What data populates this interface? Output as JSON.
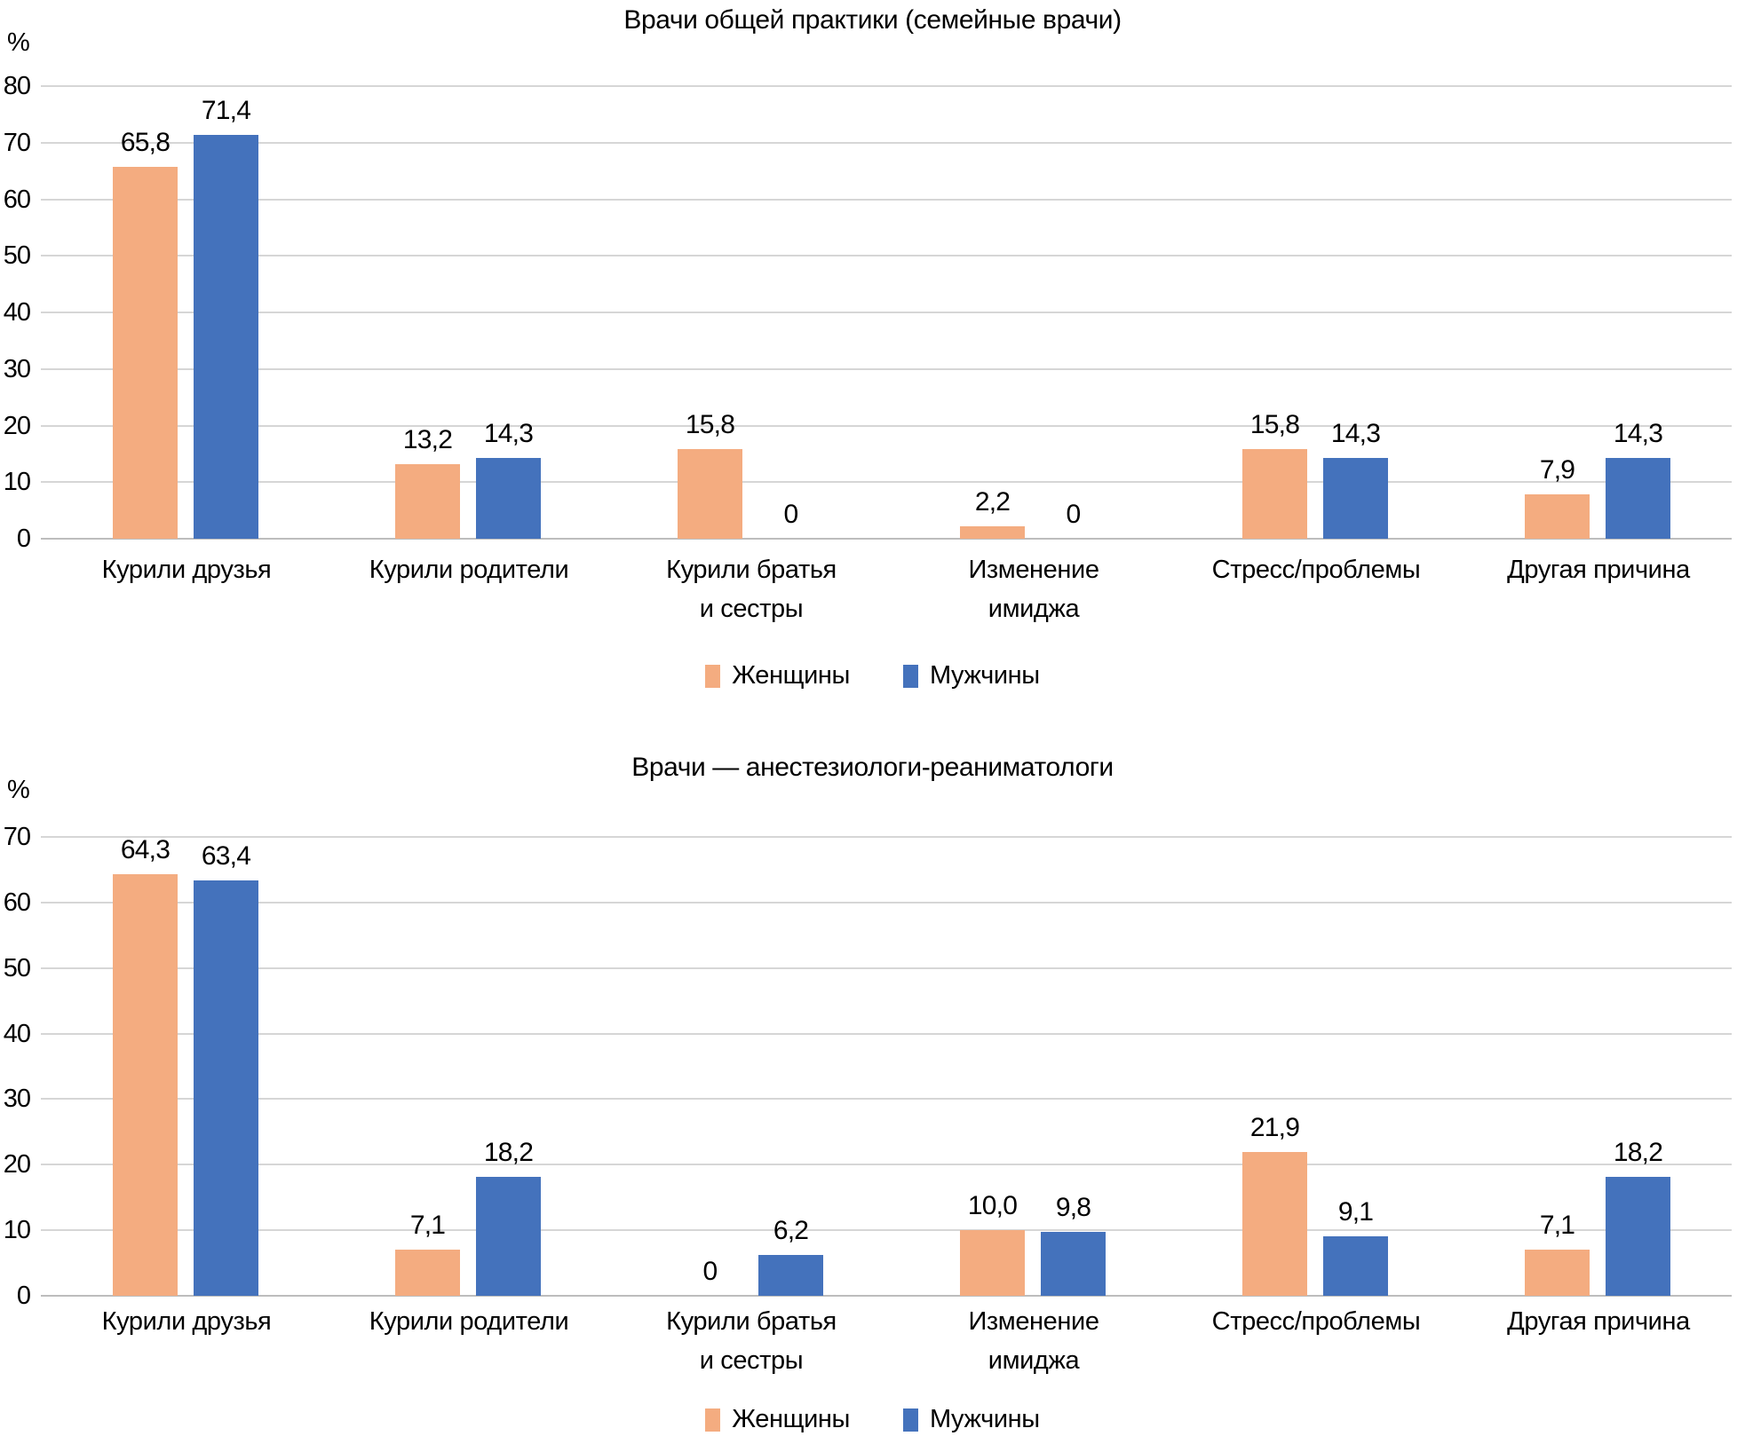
{
  "figure": {
    "legend": {
      "women": "Женщины",
      "men": "Мужчины"
    },
    "colors": {
      "women": "#F4AC80",
      "men": "#4472BC",
      "gridline": "#D6D6D6",
      "axis": "#BDBDBD",
      "text": "#000000"
    }
  },
  "chart_data": [
    {
      "type": "bar",
      "title": "Врачи общей практики (семейные врачи)",
      "ylabel": "%",
      "ylim": [
        0,
        80
      ],
      "ytick_step": 10,
      "yticks": [
        "0",
        "10",
        "20",
        "30",
        "40",
        "50",
        "60",
        "70",
        "80"
      ],
      "grid": true,
      "legend_position": "bottom",
      "categories": [
        [
          "Курили друзья"
        ],
        [
          "Курили родители"
        ],
        [
          "Курили братья",
          "и сестры"
        ],
        [
          "Изменение",
          "имиджа"
        ],
        [
          "Стресс/проблемы"
        ],
        [
          "Другая причина"
        ]
      ],
      "series": [
        {
          "name": "Женщины",
          "values": [
            65.8,
            13.2,
            15.8,
            2.2,
            15.8,
            7.9
          ],
          "labels": [
            "65,8",
            "13,2",
            "15,8",
            "2,2",
            "15,8",
            "7,9"
          ]
        },
        {
          "name": "Мужчины",
          "values": [
            71.4,
            14.3,
            0,
            0,
            14.3,
            14.3
          ],
          "labels": [
            "71,4",
            "14,3",
            "0",
            "0",
            "14,3",
            "14,3"
          ]
        }
      ]
    },
    {
      "type": "bar",
      "title": "Врачи — анестезиологи-реаниматологи",
      "ylabel": "%",
      "ylim": [
        0,
        70
      ],
      "ytick_step": 10,
      "yticks": [
        "0",
        "10",
        "20",
        "30",
        "40",
        "50",
        "60",
        "70"
      ],
      "grid": true,
      "legend_position": "bottom",
      "categories": [
        [
          "Курили друзья"
        ],
        [
          "Курили родители"
        ],
        [
          "Курили братья",
          "и сестры"
        ],
        [
          "Изменение",
          "имиджа"
        ],
        [
          "Стресс/проблемы"
        ],
        [
          "Другая причина"
        ]
      ],
      "series": [
        {
          "name": "Женщины",
          "values": [
            64.3,
            7.1,
            0,
            10.0,
            21.9,
            7.1
          ],
          "labels": [
            "64,3",
            "7,1",
            "0",
            "10,0",
            "21,9",
            "7,1"
          ]
        },
        {
          "name": "Мужчины",
          "values": [
            63.4,
            18.2,
            6.2,
            9.8,
            9.1,
            18.2
          ],
          "labels": [
            "63,4",
            "18,2",
            "6,2",
            "9,8",
            "9,1",
            "18,2"
          ]
        }
      ]
    }
  ]
}
